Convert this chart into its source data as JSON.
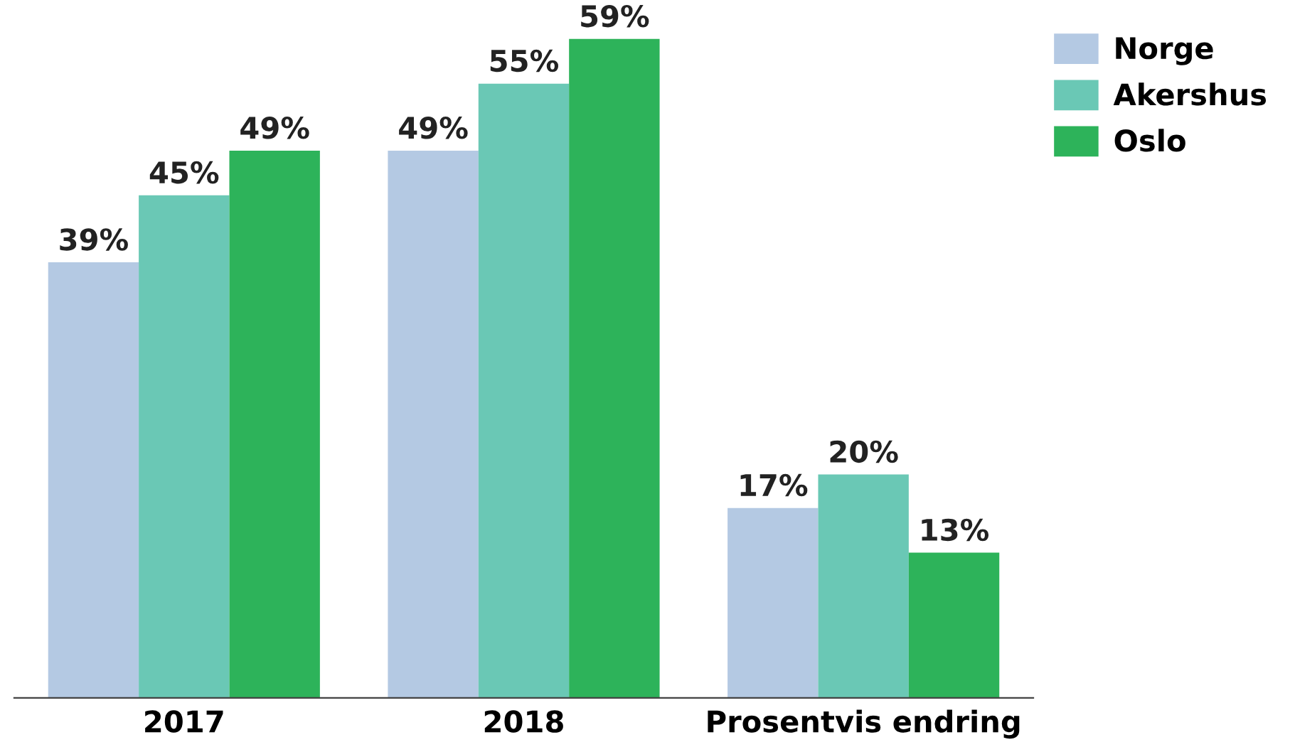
{
  "chart_data": {
    "type": "bar",
    "categories": [
      "2017",
      "2018",
      "Prosentvis endring"
    ],
    "series": [
      {
        "name": "Norge",
        "color": "#b4c9e3",
        "values": [
          39,
          49,
          17
        ],
        "value_labels": [
          "39%",
          "49%",
          "17%"
        ]
      },
      {
        "name": "Akershus",
        "color": "#6ac8b5",
        "values": [
          45,
          55,
          20
        ],
        "value_labels": [
          "45%",
          "55%",
          "20%"
        ]
      },
      {
        "name": "Oslo",
        "color": "#2db35a",
        "values": [
          49,
          59,
          13
        ],
        "value_labels": [
          "49%",
          "59%",
          "13%"
        ]
      }
    ],
    "legend": "right",
    "grid": false
  }
}
